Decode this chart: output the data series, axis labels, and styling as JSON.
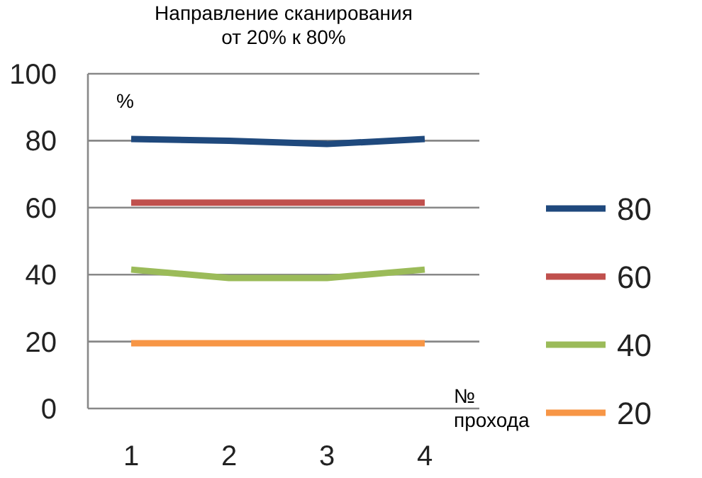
{
  "chart_data": {
    "type": "line",
    "title": "Направление сканирования",
    "subtitle": "от 20% к 80%",
    "ylabel": "%",
    "xlabel": "№\nпрохода",
    "categories": [
      "1",
      "2",
      "3",
      "4"
    ],
    "series": [
      {
        "name": "80",
        "color": "#1f497d",
        "values": [
          80.5,
          80,
          79,
          80.5
        ]
      },
      {
        "name": "60",
        "color": "#c0504d",
        "values": [
          61.5,
          61.5,
          61.5,
          61.5
        ]
      },
      {
        "name": "40",
        "color": "#9bbb59",
        "values": [
          41.5,
          39,
          39,
          41.5
        ]
      },
      {
        "name": "20",
        "color": "#f79646",
        "values": [
          19.5,
          19.5,
          19.5,
          19.5
        ]
      }
    ],
    "ylim": [
      0,
      100
    ],
    "yticks": [
      0,
      20,
      40,
      60,
      80,
      100
    ],
    "grid": "y",
    "legend": "right",
    "marker": "none",
    "line_style": "solid"
  }
}
